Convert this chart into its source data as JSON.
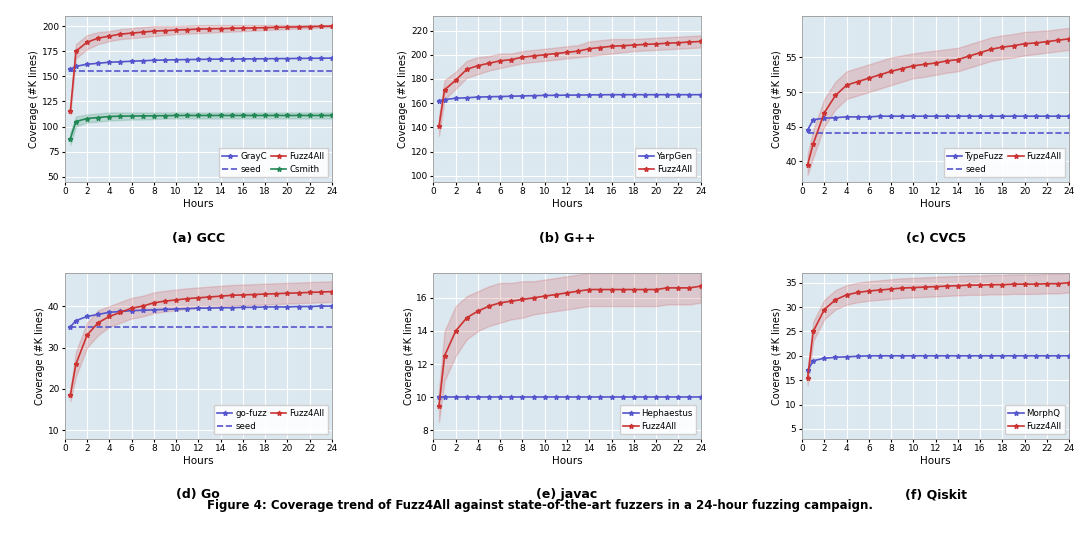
{
  "figure_title": "Figure 4: Coverage trend of Fuzz4All against state-of-the-art fuzzers in a 24-hour fuzzing campaign.",
  "hours": [
    0.5,
    1,
    2,
    3,
    4,
    5,
    6,
    7,
    8,
    9,
    10,
    11,
    12,
    13,
    14,
    15,
    16,
    17,
    18,
    19,
    20,
    21,
    22,
    23,
    24
  ],
  "subplots": [
    {
      "title": "(a) GCC",
      "ylabel": "Coverage (#K lines)",
      "xlabel": "Hours",
      "ylim": [
        45,
        210
      ],
      "yticks": [
        50,
        75,
        100,
        125,
        150,
        175,
        200
      ],
      "series": [
        {
          "label": "GrayC",
          "color": "#5555cc",
          "linestyle": "-",
          "marker": "*",
          "data": [
            157,
            160,
            162,
            163,
            164,
            164.5,
            165,
            165.5,
            166,
            166.2,
            166.5,
            166.7,
            166.8,
            167,
            167.1,
            167.2,
            167.3,
            167.4,
            167.5,
            167.6,
            167.7,
            167.8,
            167.9,
            168,
            168.1
          ],
          "ci_lower": null,
          "ci_upper": null
        },
        {
          "label": "seed",
          "color": "#5555cc",
          "linestyle": "--",
          "marker": null,
          "data": [
            155,
            155,
            155,
            155,
            155,
            155,
            155,
            155,
            155,
            155,
            155,
            155,
            155,
            155,
            155,
            155,
            155,
            155,
            155,
            155,
            155,
            155,
            155,
            155,
            155
          ],
          "ci_lower": null,
          "ci_upper": null
        },
        {
          "label": "Fuzz4All",
          "color": "#cc3333",
          "linestyle": "-",
          "marker": "*",
          "data": [
            115,
            175,
            184,
            188,
            190,
            192,
            193,
            194,
            195,
            195.5,
            196,
            196.5,
            197,
            197.3,
            197.5,
            197.7,
            198,
            198.2,
            198.5,
            198.7,
            199,
            199.2,
            199.5,
            199.7,
            200
          ],
          "ci_lower": [
            112,
            168,
            177,
            182,
            185,
            187,
            188,
            189,
            190,
            191,
            192,
            192.5,
            193,
            193.5,
            194,
            194.5,
            195,
            195.5,
            196,
            196.5,
            197,
            197.5,
            198,
            198.5,
            199
          ],
          "ci_upper": [
            118,
            182,
            191,
            194,
            195,
            197,
            198,
            199,
            200,
            200,
            200,
            200.5,
            201,
            201,
            201,
            201,
            201,
            201,
            201,
            201,
            201,
            201,
            201,
            201,
            201
          ]
        },
        {
          "label": "Csmith",
          "color": "#228855",
          "linestyle": "-",
          "marker": "*",
          "data": [
            88,
            105,
            108,
            109,
            110,
            110.3,
            110.5,
            110.6,
            110.7,
            110.8,
            111,
            111,
            111,
            111,
            111,
            111,
            111,
            111,
            111,
            111,
            111,
            111,
            111,
            111,
            111
          ],
          "ci_lower": [
            82,
            100,
            104,
            105,
            106,
            106.5,
            107,
            107,
            107.5,
            108,
            108,
            108,
            108,
            108,
            108,
            108,
            108,
            108,
            108,
            108,
            108,
            108,
            108,
            108,
            108
          ],
          "ci_upper": [
            94,
            110,
            112,
            113,
            114,
            114,
            114,
            114,
            114,
            114,
            114,
            114,
            114,
            114,
            114,
            114,
            114,
            114,
            114,
            114,
            114,
            114,
            114,
            114,
            114
          ]
        }
      ],
      "legend_ncol": 2
    },
    {
      "title": "(b) G++",
      "ylabel": "Coverage (#K lines)",
      "xlabel": "Hours",
      "ylim": [
        95,
        232
      ],
      "yticks": [
        100,
        120,
        140,
        160,
        180,
        200,
        220
      ],
      "series": [
        {
          "label": "YarpGen",
          "color": "#5555cc",
          "linestyle": "-",
          "marker": "*",
          "data": [
            162,
            163,
            164,
            164.5,
            165,
            165.3,
            165.5,
            165.7,
            166,
            166.2,
            166.4,
            166.5,
            166.6,
            166.7,
            166.8,
            166.9,
            167,
            167,
            167,
            167,
            167,
            167,
            167,
            167,
            167
          ],
          "ci_lower": null,
          "ci_upper": null
        },
        {
          "label": "Fuzz4All",
          "color": "#cc3333",
          "linestyle": "-",
          "marker": "*",
          "data": [
            141,
            171,
            179,
            188,
            191,
            193,
            195,
            196,
            198,
            199,
            200,
            201,
            202,
            203,
            205,
            206,
            207,
            207.5,
            208,
            208.5,
            209,
            209.5,
            210,
            210.5,
            211
          ],
          "ci_lower": [
            133,
            163,
            172,
            181,
            184,
            187,
            189,
            191,
            193,
            194,
            195,
            196,
            197,
            198,
            199,
            200,
            201,
            202,
            203,
            203.5,
            204,
            204.5,
            205,
            205.5,
            206
          ],
          "ci_upper": [
            149,
            179,
            186,
            195,
            198,
            199,
            201,
            201,
            203,
            204,
            205,
            206,
            207,
            208,
            211,
            212,
            213,
            213,
            213,
            213.5,
            214,
            214.5,
            215,
            215.5,
            216
          ]
        }
      ],
      "legend_ncol": 1
    },
    {
      "title": "(c) CVC5",
      "ylabel": "Coverage (#K lines)",
      "xlabel": "Hours",
      "ylim": [
        37,
        61
      ],
      "yticks": [
        40,
        45,
        50,
        55
      ],
      "series": [
        {
          "label": "TypeFuzz",
          "color": "#5555cc",
          "linestyle": "-",
          "marker": "*",
          "data": [
            44.5,
            46,
            46.2,
            46.3,
            46.4,
            46.4,
            46.4,
            46.5,
            46.5,
            46.5,
            46.5,
            46.5,
            46.5,
            46.5,
            46.5,
            46.5,
            46.5,
            46.5,
            46.5,
            46.5,
            46.5,
            46.5,
            46.5,
            46.5,
            46.5
          ],
          "ci_lower": null,
          "ci_upper": null
        },
        {
          "label": "seed",
          "color": "#5555cc",
          "linestyle": "--",
          "marker": null,
          "data": [
            44,
            44,
            44,
            44,
            44,
            44,
            44,
            44,
            44,
            44,
            44,
            44,
            44,
            44,
            44,
            44,
            44,
            44,
            44,
            44,
            44,
            44,
            44,
            44,
            44
          ],
          "ci_lower": null,
          "ci_upper": null
        },
        {
          "label": "Fuzz4All",
          "color": "#cc3333",
          "linestyle": "-",
          "marker": "*",
          "data": [
            39.5,
            42.5,
            47,
            49.5,
            51,
            51.5,
            52,
            52.5,
            53,
            53.4,
            53.8,
            54,
            54.2,
            54.5,
            54.7,
            55.2,
            55.7,
            56.2,
            56.5,
            56.7,
            57,
            57.1,
            57.3,
            57.5,
            57.7
          ],
          "ci_lower": [
            38,
            40.5,
            45,
            47.5,
            49,
            49.5,
            50,
            50.5,
            51,
            51.5,
            52,
            52.2,
            52.5,
            52.8,
            53,
            53.5,
            54,
            54.5,
            54.8,
            55,
            55.3,
            55.5,
            55.7,
            55.9,
            56.1
          ],
          "ci_upper": [
            41,
            44.5,
            49,
            51.5,
            53,
            53.5,
            54,
            54.5,
            55,
            55.3,
            55.6,
            55.8,
            56,
            56.2,
            56.4,
            56.9,
            57.4,
            57.9,
            58.2,
            58.4,
            58.7,
            58.8,
            58.9,
            59.1,
            59.3
          ]
        }
      ],
      "legend_ncol": 2
    },
    {
      "title": "(d) Go",
      "ylabel": "Coverage (#K lines)",
      "xlabel": "Hours",
      "ylim": [
        8,
        48
      ],
      "yticks": [
        10,
        20,
        30,
        40
      ],
      "series": [
        {
          "label": "go-fuzz",
          "color": "#5555cc",
          "linestyle": "-",
          "marker": "*",
          "data": [
            35,
            36.5,
            37.5,
            38,
            38.5,
            38.7,
            38.9,
            39,
            39.1,
            39.2,
            39.3,
            39.4,
            39.5,
            39.5,
            39.6,
            39.6,
            39.7,
            39.7,
            39.8,
            39.8,
            39.8,
            39.9,
            39.9,
            40,
            40
          ],
          "ci_lower": null,
          "ci_upper": null
        },
        {
          "label": "seed",
          "color": "#5555cc",
          "linestyle": "--",
          "marker": null,
          "data": [
            35,
            35,
            35,
            35,
            35,
            35,
            35,
            35,
            35,
            35,
            35,
            35,
            35,
            35,
            35,
            35,
            35,
            35,
            35,
            35,
            35,
            35,
            35,
            35,
            35
          ],
          "ci_lower": null,
          "ci_upper": null
        },
        {
          "label": "Fuzz4All",
          "color": "#cc3333",
          "linestyle": "-",
          "marker": "*",
          "data": [
            18.5,
            26,
            33,
            36,
            37.5,
            38.5,
            39.5,
            40,
            40.8,
            41.2,
            41.5,
            41.8,
            42,
            42.2,
            42.4,
            42.6,
            42.7,
            42.8,
            42.9,
            43,
            43.1,
            43.2,
            43.3,
            43.4,
            43.5
          ],
          "ci_lower": [
            17,
            23,
            30,
            33,
            35,
            36,
            37,
            37.5,
            38.3,
            38.7,
            39,
            39.3,
            39.5,
            39.7,
            39.9,
            40.1,
            40.2,
            40.3,
            40.4,
            40.5,
            40.6,
            40.7,
            40.8,
            40.9,
            41
          ],
          "ci_upper": [
            20,
            29,
            36,
            39,
            40,
            41,
            42,
            42.5,
            43.3,
            43.7,
            44,
            44.3,
            44.5,
            44.7,
            44.9,
            45.1,
            45.2,
            45.3,
            45.4,
            45.5,
            45.6,
            45.7,
            45.8,
            45.9,
            46
          ]
        }
      ],
      "legend_ncol": 2
    },
    {
      "title": "(e) javac",
      "ylabel": "Coverage (#K lines)",
      "xlabel": "Hours",
      "ylim": [
        7.5,
        17.5
      ],
      "yticks": [
        8,
        10,
        12,
        14,
        16
      ],
      "series": [
        {
          "label": "Hephaestus",
          "color": "#5555cc",
          "linestyle": "-",
          "marker": "*",
          "data": [
            10,
            10,
            10,
            10,
            10,
            10,
            10,
            10,
            10,
            10,
            10,
            10,
            10,
            10,
            10,
            10,
            10,
            10,
            10,
            10,
            10,
            10,
            10,
            10,
            10
          ],
          "ci_lower": null,
          "ci_upper": null
        },
        {
          "label": "Fuzz4All",
          "color": "#cc3333",
          "linestyle": "-",
          "marker": "*",
          "data": [
            9.5,
            12.5,
            14,
            14.8,
            15.2,
            15.5,
            15.7,
            15.8,
            15.9,
            16,
            16.1,
            16.2,
            16.3,
            16.4,
            16.5,
            16.5,
            16.5,
            16.5,
            16.5,
            16.5,
            16.5,
            16.6,
            16.6,
            16.6,
            16.7
          ],
          "ci_lower": [
            8.5,
            11,
            12.5,
            13.5,
            14,
            14.3,
            14.5,
            14.7,
            14.8,
            15,
            15.1,
            15.2,
            15.3,
            15.4,
            15.5,
            15.5,
            15.5,
            15.5,
            15.5,
            15.5,
            15.5,
            15.6,
            15.6,
            15.6,
            15.7
          ],
          "ci_upper": [
            10.5,
            14,
            15.5,
            16.1,
            16.4,
            16.7,
            16.9,
            16.9,
            17,
            17,
            17.1,
            17.2,
            17.3,
            17.4,
            17.5,
            17.5,
            17.5,
            17.5,
            17.5,
            17.5,
            17.5,
            17.6,
            17.6,
            17.6,
            17.7
          ]
        }
      ],
      "legend_ncol": 1
    },
    {
      "title": "(f) Qiskit",
      "ylabel": "Coverage (#K lines)",
      "xlabel": "Hours",
      "ylim": [
        3,
        37
      ],
      "yticks": [
        5,
        10,
        15,
        20,
        25,
        30,
        35
      ],
      "series": [
        {
          "label": "MorphQ",
          "color": "#5555cc",
          "linestyle": "-",
          "marker": "*",
          "data": [
            17,
            19,
            19.5,
            19.7,
            19.8,
            19.9,
            20,
            20,
            20,
            20,
            20,
            20,
            20,
            20,
            20,
            20,
            20,
            20,
            20,
            20,
            20,
            20,
            20,
            20,
            20
          ],
          "ci_lower": null,
          "ci_upper": null
        },
        {
          "label": "Fuzz4All",
          "color": "#cc3333",
          "linestyle": "-",
          "marker": "*",
          "data": [
            15.5,
            25,
            29.5,
            31.5,
            32.5,
            33,
            33.3,
            33.5,
            33.7,
            33.9,
            34,
            34.1,
            34.2,
            34.3,
            34.4,
            34.5,
            34.5,
            34.6,
            34.6,
            34.7,
            34.7,
            34.7,
            34.8,
            34.8,
            35
          ],
          "ci_lower": [
            14,
            23,
            27.5,
            29.5,
            30.5,
            31,
            31.3,
            31.5,
            31.7,
            31.9,
            32,
            32.1,
            32.2,
            32.3,
            32.4,
            32.5,
            32.5,
            32.6,
            32.6,
            32.7,
            32.7,
            32.7,
            32.8,
            32.8,
            33
          ],
          "ci_upper": [
            17,
            27,
            31.5,
            33.5,
            34.5,
            35,
            35.3,
            35.5,
            35.7,
            35.9,
            36,
            36.1,
            36.2,
            36.3,
            36.4,
            36.5,
            36.5,
            36.6,
            36.6,
            36.7,
            36.7,
            36.7,
            36.8,
            36.8,
            37
          ]
        }
      ],
      "legend_ncol": 1
    }
  ],
  "bg_color": "#dce8f0",
  "grid_color": "#ffffff",
  "fig_width": 10.8,
  "fig_height": 5.35,
  "dpi": 100
}
